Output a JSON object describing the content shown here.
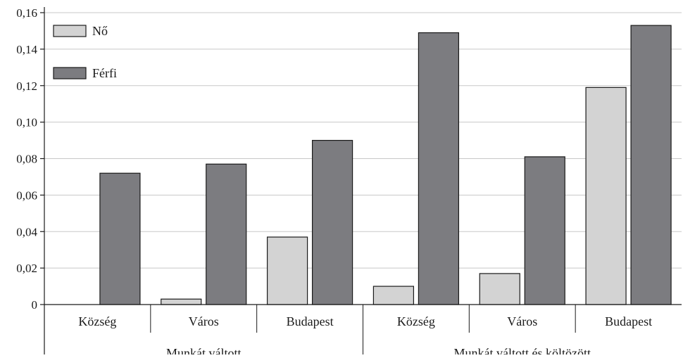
{
  "chart_data": {
    "type": "bar",
    "title": "",
    "xlabel": "",
    "ylabel": "",
    "ylim": [
      0,
      0.16
    ],
    "yticks": [
      0,
      0.02,
      0.04,
      0.06,
      0.08,
      0.1,
      0.12,
      0.14,
      0.16
    ],
    "ytick_labels": [
      "0",
      "0,02",
      "0,04",
      "0,06",
      "0,08",
      "0,10",
      "0,12",
      "0,14",
      "0,16"
    ],
    "grid": true,
    "legend_position": "top-left",
    "categories": [
      "Község",
      "Város",
      "Budapest",
      "Község",
      "Város",
      "Budapest"
    ],
    "groups": [
      {
        "label": "Munkát váltott",
        "categories": [
          0,
          1,
          2
        ]
      },
      {
        "label": "Munkát váltott és költözött",
        "categories": [
          3,
          4,
          5
        ]
      }
    ],
    "series": [
      {
        "name": "Nő",
        "color": "#d3d3d3",
        "values": [
          0,
          0.003,
          0.037,
          0.01,
          0.017,
          0.119
        ]
      },
      {
        "name": "Férfi",
        "color": "#7c7c80",
        "values": [
          0.072,
          0.077,
          0.09,
          0.149,
          0.081,
          0.153
        ]
      }
    ]
  }
}
